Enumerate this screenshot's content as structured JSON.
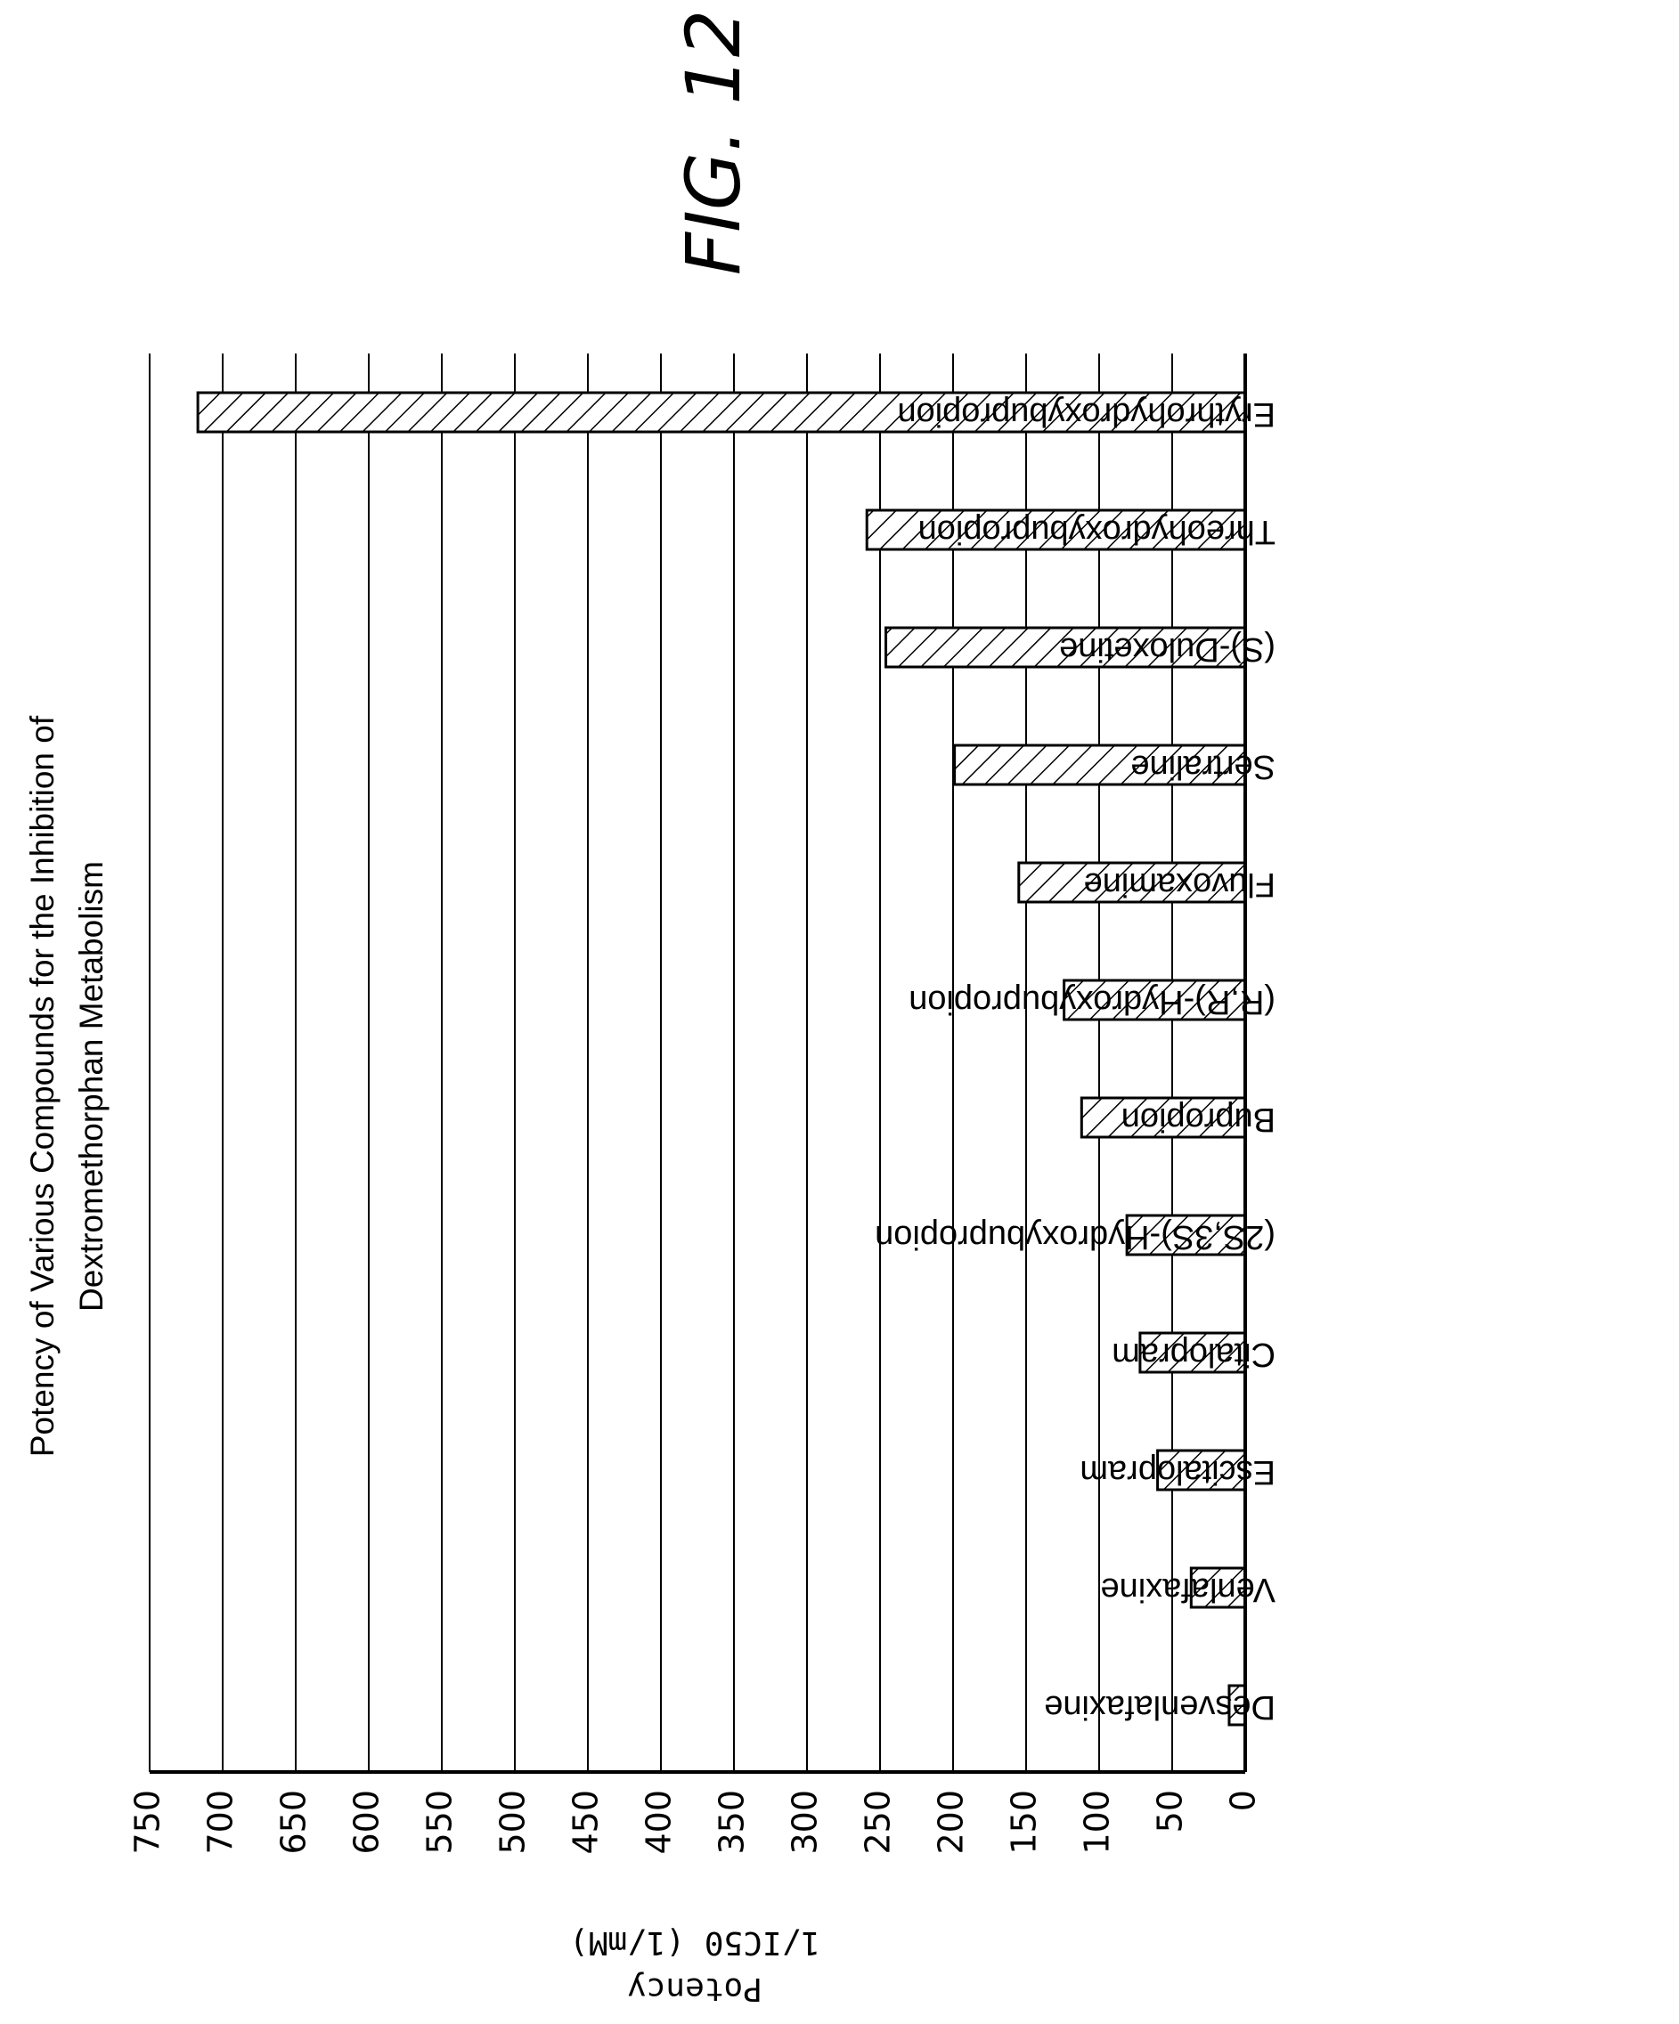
{
  "figure_label": "FIG. 12",
  "chart_data": {
    "type": "bar",
    "orientation": "horizontal",
    "title": "Potency of Various Compounds for the Inhibition of Dextromethorphan Metabolism",
    "title_lines": [
      "Potency of Various Compounds for the Inhibition of",
      "Dextromethorphan Metabolism"
    ],
    "ylabel_lines": [
      "Potency",
      "1/IC50 (1/mM)"
    ],
    "categories": [
      "Erythrohydroxybupropion",
      "Threohydroxybupropion",
      "(S)-Duloxetine",
      "Sertraline",
      "Fluvoxamine",
      "(R,R)-Hydroxybupropion",
      "Bupropion",
      "(2S,3S)-Hydroxybupropion",
      "Citalopram",
      "Escitalopram",
      "Venlafaxine",
      "Desvenlafaxine"
    ],
    "values": [
      717,
      259,
      246,
      199,
      155,
      124,
      112,
      81,
      72,
      60,
      37,
      11
    ],
    "ylim": [
      0,
      750
    ],
    "ticks": [
      0,
      50,
      100,
      150,
      200,
      250,
      300,
      350,
      400,
      450,
      500,
      550,
      600,
      650,
      700,
      750
    ],
    "grid": true,
    "bar_fill": "hatched",
    "rotation": "page rotated 90 degrees (landscape figure)"
  }
}
